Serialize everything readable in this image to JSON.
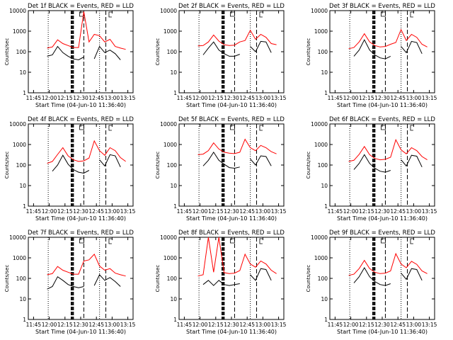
{
  "chart_data": {
    "type": "line",
    "x_ticks": [
      "11:45",
      "12:00",
      "12:15",
      "12:30",
      "12:45",
      "13:00",
      "13:15"
    ],
    "x_tick_minutes": [
      705,
      720,
      735,
      750,
      765,
      780,
      795
    ],
    "xlim_minutes": [
      700,
      800
    ],
    "y_scale": "log",
    "ylim": [
      1,
      10000
    ],
    "y_ticks": [
      "1",
      "10",
      "100",
      "1000",
      "10000"
    ],
    "ylabel": "Counts/sec",
    "xlabel": "Start Time (04-Jun-10 11:36:40)",
    "series_colors": {
      "events": "#000000",
      "lld": "#ff0000"
    },
    "markers": {
      "dotted": [
        719,
        768
      ],
      "dashed_thick": [
        741,
        742,
        743
      ],
      "dashed": [
        753,
        774
      ],
      "markers_SD_at": 751,
      "marker_E_at": 777
    },
    "panels": [
      {
        "title": "Det 1f BLACK = Events, RED = LLD",
        "x": [
          718,
          723,
          728,
          733,
          738,
          743,
          748,
          753,
          758,
          763,
          768,
          773,
          778,
          783,
          788,
          793
        ],
        "lld": [
          150,
          170,
          380,
          250,
          200,
          160,
          160,
          9000,
          300,
          700,
          600,
          300,
          400,
          180,
          150,
          130
        ],
        "events": [
          60,
          70,
          180,
          90,
          60,
          45,
          40,
          55,
          null,
          45,
          180,
          90,
          120,
          80,
          40,
          null
        ]
      },
      {
        "title": "Det 2f BLACK = Events, RED = LLD",
        "x": [
          718,
          723,
          728,
          733,
          738,
          743,
          748,
          753,
          758,
          763,
          768,
          773,
          778,
          783,
          788,
          793
        ],
        "lld": [
          190,
          200,
          300,
          650,
          330,
          220,
          200,
          210,
          300,
          350,
          1100,
          400,
          700,
          500,
          250,
          220
        ],
        "events": [
          null,
          70,
          150,
          300,
          120,
          80,
          60,
          60,
          75,
          null,
          180,
          100,
          320,
          300,
          90,
          null
        ]
      },
      {
        "title": "Det 3f BLACK = Events, RED = LLD",
        "x": [
          718,
          723,
          728,
          733,
          738,
          743,
          748,
          753,
          758,
          763,
          768,
          773,
          778,
          783,
          788,
          793
        ],
        "lld": [
          140,
          160,
          300,
          750,
          300,
          200,
          170,
          180,
          230,
          280,
          1200,
          350,
          700,
          500,
          230,
          170
        ],
        "events": [
          null,
          60,
          120,
          380,
          120,
          70,
          50,
          45,
          60,
          null,
          180,
          90,
          320,
          280,
          80,
          null
        ]
      },
      {
        "title": "Det 4f BLACK = Events, RED = LLD",
        "x": [
          718,
          723,
          728,
          733,
          738,
          743,
          748,
          753,
          758,
          763,
          768,
          773,
          778,
          783,
          788,
          793
        ],
        "lld": [
          120,
          150,
          330,
          700,
          280,
          180,
          150,
          160,
          220,
          1500,
          500,
          300,
          700,
          500,
          230,
          150
        ],
        "events": [
          null,
          50,
          100,
          300,
          110,
          60,
          45,
          40,
          55,
          null,
          180,
          90,
          320,
          280,
          80,
          null
        ]
      },
      {
        "title": "Det 5f BLACK = Events, RED = LLD",
        "x": [
          718,
          723,
          728,
          733,
          738,
          743,
          748,
          753,
          758,
          763,
          768,
          773,
          778,
          783,
          788,
          793
        ],
        "lld": [
          320,
          340,
          500,
          1200,
          600,
          420,
          380,
          360,
          420,
          1800,
          700,
          500,
          900,
          700,
          450,
          350
        ],
        "events": [
          null,
          90,
          170,
          420,
          170,
          110,
          75,
          70,
          80,
          null,
          200,
          100,
          280,
          260,
          90,
          null
        ]
      },
      {
        "title": "Det 6f BLACK = Events, RED = LLD",
        "x": [
          718,
          723,
          728,
          733,
          738,
          743,
          748,
          753,
          758,
          763,
          768,
          773,
          778,
          783,
          788,
          793
        ],
        "lld": [
          150,
          170,
          330,
          800,
          320,
          210,
          180,
          190,
          240,
          1700,
          550,
          350,
          700,
          500,
          260,
          180
        ],
        "events": [
          null,
          60,
          120,
          320,
          120,
          70,
          50,
          45,
          55,
          null,
          180,
          90,
          300,
          270,
          80,
          null
        ]
      },
      {
        "title": "Det 7f BLACK = Events, RED = LLD",
        "x": [
          718,
          723,
          728,
          733,
          738,
          743,
          748,
          753,
          758,
          763,
          768,
          773,
          778,
          783,
          788,
          793
        ],
        "lld": [
          150,
          170,
          380,
          250,
          200,
          160,
          160,
          700,
          800,
          1500,
          400,
          250,
          300,
          180,
          150,
          130
        ],
        "events": [
          30,
          40,
          120,
          80,
          50,
          40,
          35,
          40,
          null,
          45,
          150,
          80,
          110,
          70,
          40,
          null
        ]
      },
      {
        "title": "Det 8f BLACK = Events, RED = LLD",
        "x": [
          718,
          723,
          728,
          733,
          738,
          743,
          748,
          753,
          758,
          763,
          768,
          773,
          778,
          783,
          788,
          793
        ],
        "lld": [
          130,
          150,
          10000,
          200,
          10000,
          190,
          170,
          180,
          240,
          1500,
          500,
          350,
          700,
          500,
          250,
          170
        ],
        "events": [
          null,
          50,
          80,
          45,
          80,
          50,
          45,
          50,
          55,
          null,
          150,
          80,
          300,
          270,
          80,
          null
        ]
      },
      {
        "title": "Det 9f BLACK = Events, RED = LLD",
        "x": [
          718,
          723,
          728,
          733,
          738,
          743,
          748,
          753,
          758,
          763,
          768,
          773,
          778,
          783,
          788,
          793
        ],
        "lld": [
          140,
          160,
          300,
          750,
          300,
          200,
          170,
          180,
          230,
          1600,
          500,
          330,
          680,
          480,
          230,
          170
        ],
        "events": [
          null,
          60,
          120,
          330,
          120,
          70,
          50,
          45,
          55,
          null,
          180,
          90,
          300,
          270,
          80,
          null
        ]
      }
    ]
  }
}
